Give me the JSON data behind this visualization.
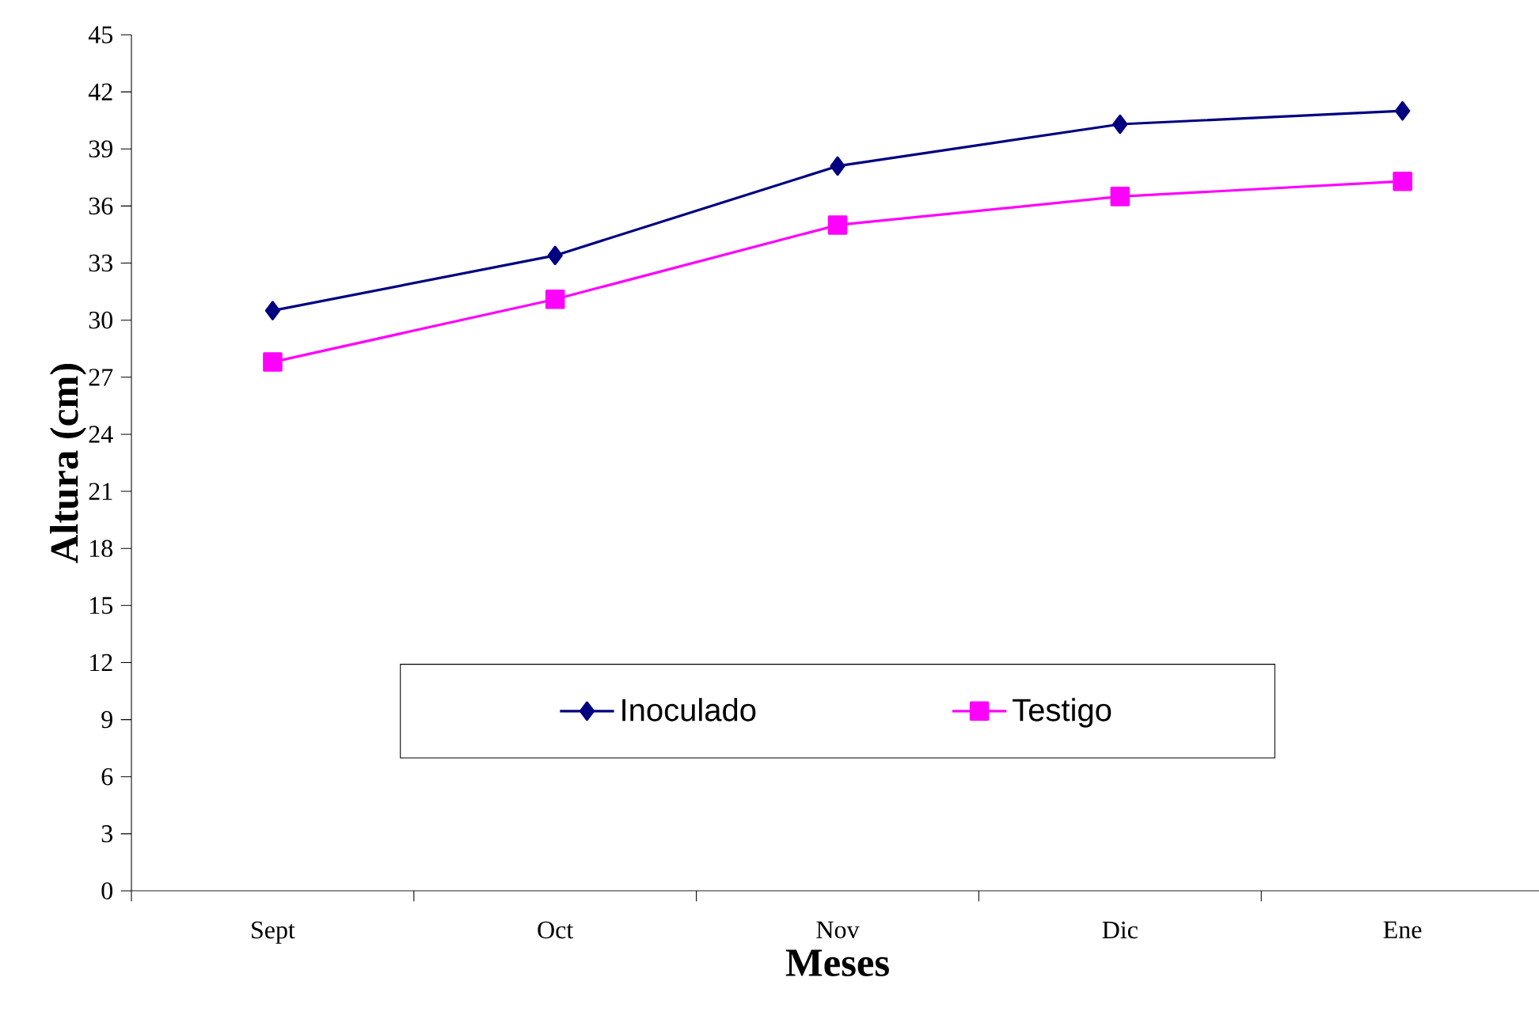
{
  "chart_data": {
    "type": "line",
    "xlabel": "Meses",
    "ylabel": "Altura (cm)",
    "categories": [
      "Sept",
      "Oct",
      "Nov",
      "Dic",
      "Ene"
    ],
    "series": [
      {
        "name": "Inoculado",
        "color": "#000080",
        "marker": "diamond",
        "values": [
          30.5,
          33.4,
          38.1,
          40.3,
          41.0
        ]
      },
      {
        "name": "Testigo",
        "color": "#ff00ff",
        "marker": "square",
        "values": [
          27.8,
          31.1,
          35.0,
          36.5,
          37.3
        ]
      }
    ],
    "ylim": [
      0,
      45
    ],
    "yticks": [
      0,
      3,
      6,
      9,
      12,
      15,
      18,
      21,
      24,
      27,
      30,
      33,
      36,
      39,
      42,
      45
    ],
    "grid": false,
    "legend": "bottom",
    "line_style": "solid"
  }
}
